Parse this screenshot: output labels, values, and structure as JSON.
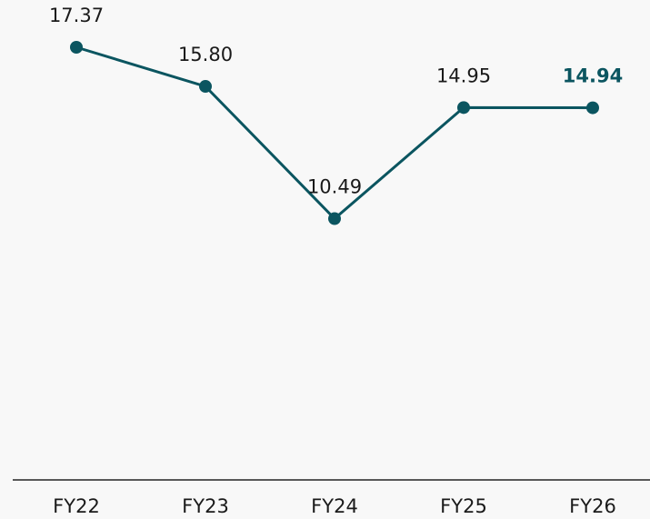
{
  "chart_data": {
    "type": "line",
    "categories": [
      "FY22",
      "FY23",
      "FY24",
      "FY25",
      "FY26"
    ],
    "series": [
      {
        "color": "#0b5560",
        "values": [
          17.37,
          15.8,
          10.49,
          14.95,
          14.94
        ],
        "value_labels": [
          "17.37",
          "15.80",
          "10.49",
          "14.95",
          "14.94"
        ]
      }
    ]
  }
}
